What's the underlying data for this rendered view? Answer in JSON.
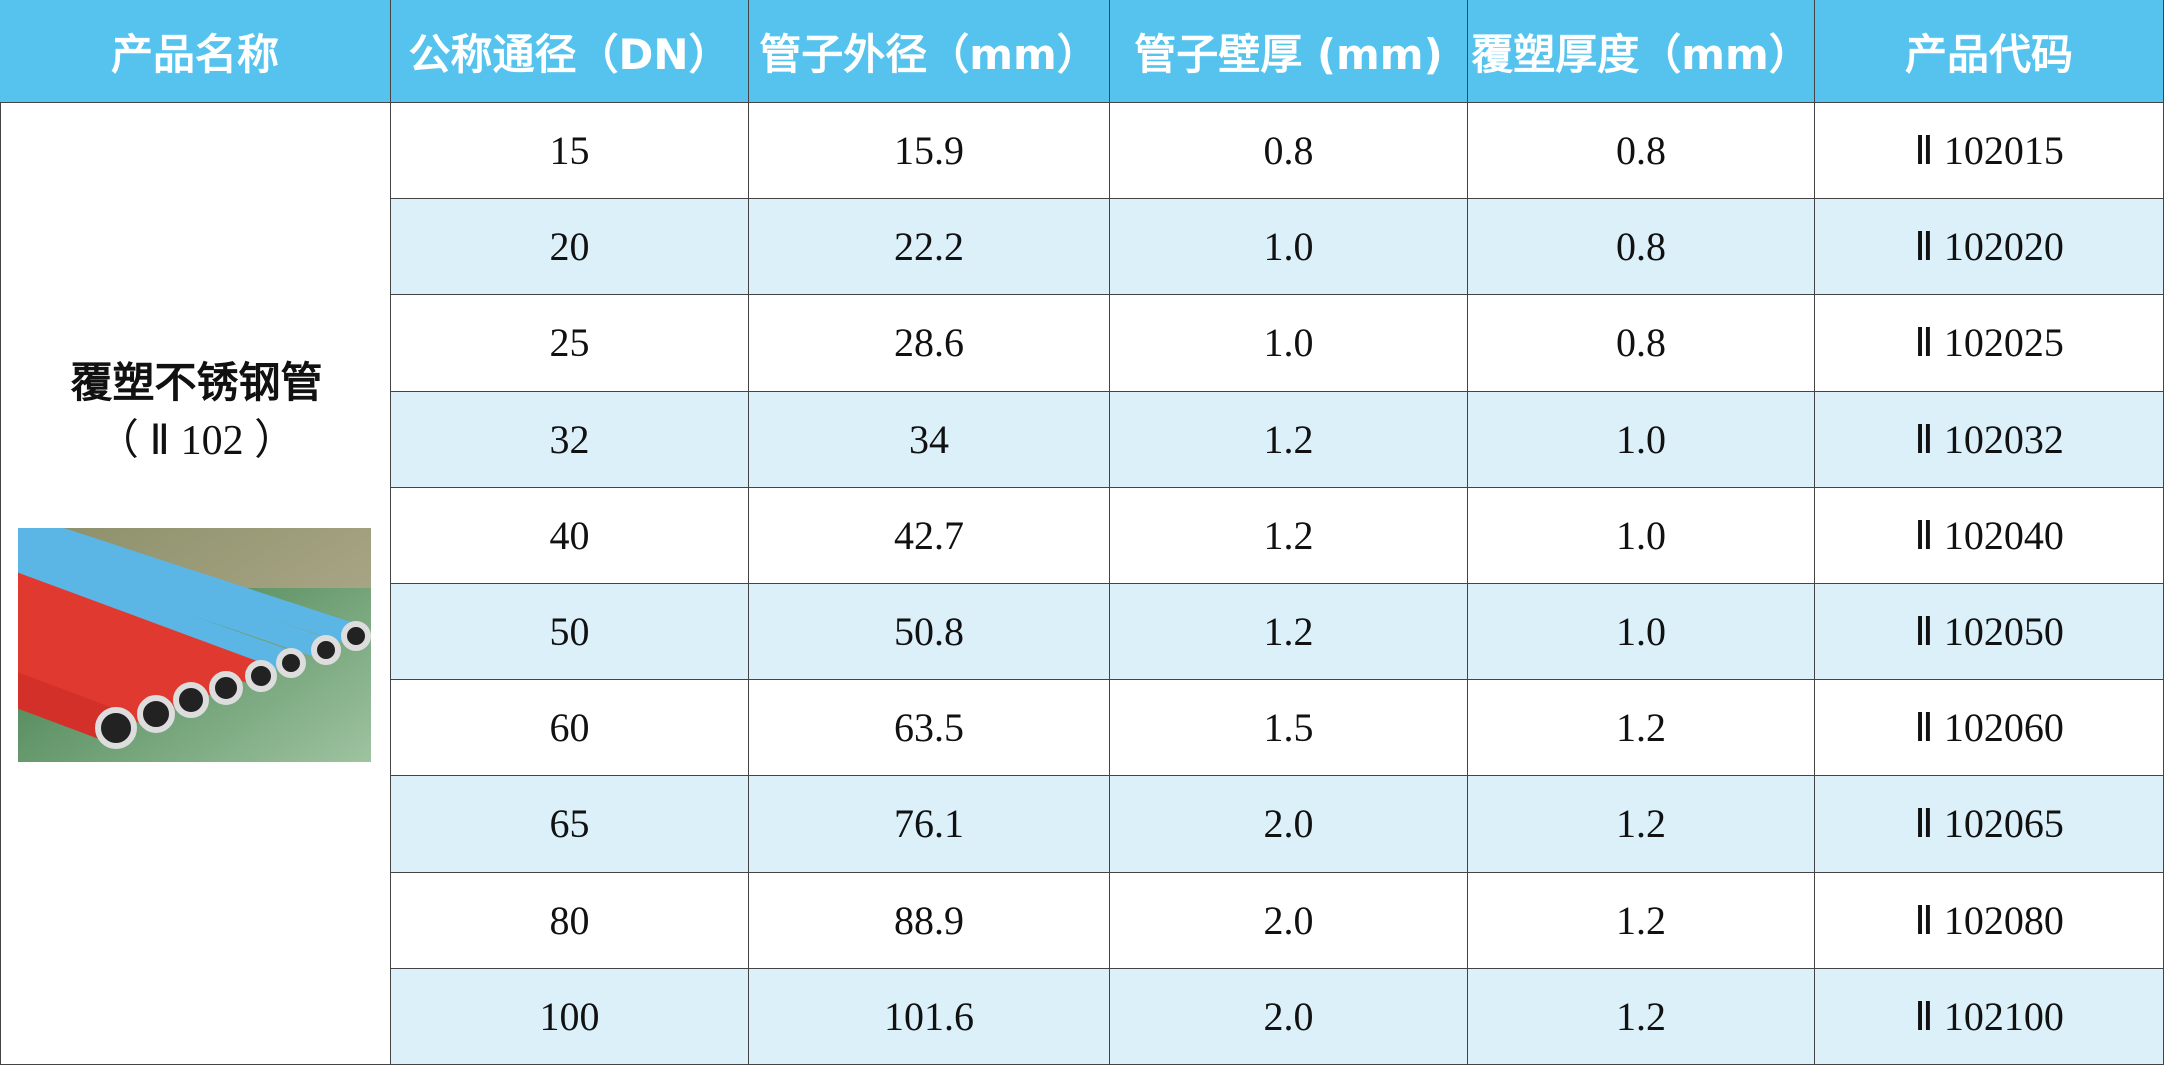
{
  "table": {
    "header": [
      "产品名称",
      "公称通径（DN）",
      "管子外径（mm）",
      "管子壁厚 (mm)",
      "覆塑厚度（mm）",
      "产品代码"
    ],
    "product": {
      "name": "覆塑不锈钢管",
      "model": "（ Ⅱ 102 ）"
    },
    "rows": [
      [
        "15",
        "15.9",
        "0.8",
        "0.8",
        "Ⅱ 102015"
      ],
      [
        "20",
        "22.2",
        "1.0",
        "0.8",
        "Ⅱ 102020"
      ],
      [
        "25",
        "28.6",
        "1.0",
        "0.8",
        "Ⅱ 102025"
      ],
      [
        "32",
        "34",
        "1.2",
        "1.0",
        "Ⅱ 102032"
      ],
      [
        "40",
        "42.7",
        "1.2",
        "1.0",
        "Ⅱ 102040"
      ],
      [
        "50",
        "50.8",
        "1.2",
        "1.0",
        "Ⅱ 102050"
      ],
      [
        "60",
        "63.5",
        "1.5",
        "1.2",
        "Ⅱ 102060"
      ],
      [
        "65",
        "76.1",
        "2.0",
        "1.2",
        "Ⅱ 102065"
      ],
      [
        "80",
        "88.9",
        "2.0",
        "1.2",
        "Ⅱ 102080"
      ],
      [
        "100",
        "101.6",
        "2.0",
        "1.2",
        "Ⅱ 102100"
      ]
    ]
  }
}
